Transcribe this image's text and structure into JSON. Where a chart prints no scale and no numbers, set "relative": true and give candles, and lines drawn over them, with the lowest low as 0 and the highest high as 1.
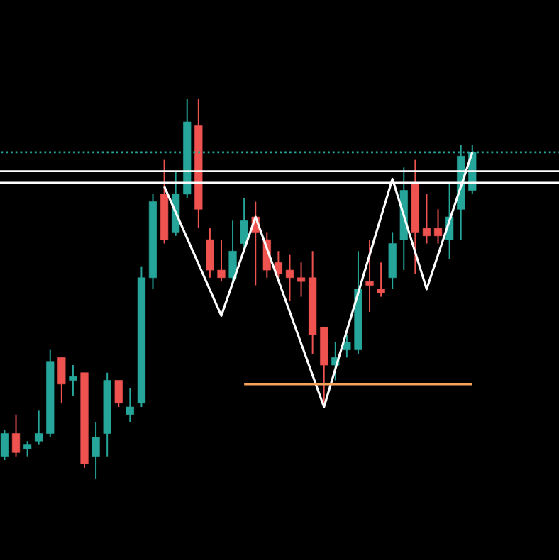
{
  "chart_data": {
    "type": "candlestick",
    "relative": true,
    "categories": [
      null,
      null,
      null,
      null,
      null,
      null,
      null,
      null,
      null,
      null,
      null,
      null,
      null,
      null,
      null,
      null,
      null,
      null,
      null,
      null,
      null,
      null,
      null,
      null,
      null,
      null,
      null,
      null,
      null,
      null,
      null,
      null,
      null,
      null,
      null,
      null,
      null,
      null,
      null,
      null,
      null,
      null
    ],
    "ohlc": [
      [
        0.06,
        0.13,
        0.05,
        0.12
      ],
      [
        0.12,
        0.17,
        0.06,
        0.07
      ],
      [
        0.08,
        0.1,
        0.06,
        0.09
      ],
      [
        0.1,
        0.18,
        0.09,
        0.12
      ],
      [
        0.12,
        0.34,
        0.11,
        0.31
      ],
      [
        0.32,
        0.32,
        0.2,
        0.25
      ],
      [
        0.26,
        0.3,
        0.22,
        0.27
      ],
      [
        0.28,
        0.28,
        0.03,
        0.04
      ],
      [
        0.06,
        0.15,
        0,
        0.11
      ],
      [
        0.12,
        0.28,
        0.06,
        0.26
      ],
      [
        0.26,
        0.26,
        0.19,
        0.2
      ],
      [
        0.17,
        0.24,
        0.15,
        0.19
      ],
      [
        0.2,
        0.56,
        0.19,
        0.53
      ],
      [
        0.53,
        0.75,
        0.5,
        0.73
      ],
      [
        0.75,
        0.84,
        0.62,
        0.63
      ],
      [
        0.65,
        0.81,
        0.64,
        0.75
      ],
      [
        0.75,
        1,
        0.74,
        0.94
      ],
      [
        0.93,
        1,
        0.66,
        0.71
      ],
      [
        0.63,
        0.66,
        0.53,
        0.55
      ],
      [
        0.55,
        0.63,
        0.52,
        0.53
      ],
      [
        0.53,
        0.68,
        0.52,
        0.6
      ],
      [
        0.62,
        0.74,
        0.6,
        0.68
      ],
      [
        0.69,
        0.73,
        0.51,
        0.65
      ],
      [
        0.63,
        0.65,
        0.53,
        0.55
      ],
      [
        0.57,
        0.6,
        0.53,
        0.54
      ],
      [
        0.55,
        0.59,
        0.47,
        0.53
      ],
      [
        0.53,
        0.57,
        0.48,
        0.52
      ],
      [
        0.53,
        0.6,
        0.33,
        0.38
      ],
      [
        0.4,
        0.4,
        0.19,
        0.3
      ],
      [
        0.3,
        0.36,
        0.26,
        0.32
      ],
      [
        0.34,
        0.38,
        0.32,
        0.36
      ],
      [
        0.34,
        0.6,
        0.33,
        0.5
      ],
      [
        0.52,
        0.63,
        0.44,
        0.51
      ],
      [
        0.5,
        0.57,
        0.48,
        0.49
      ],
      [
        0.53,
        0.65,
        0.5,
        0.62
      ],
      [
        0.63,
        0.82,
        0.55,
        0.76
      ],
      [
        0.78,
        0.84,
        0.54,
        0.65
      ],
      [
        0.66,
        0.75,
        0.62,
        0.64
      ],
      [
        0.66,
        0.71,
        0.62,
        0.64
      ],
      [
        0.63,
        0.78,
        0.58,
        0.69
      ],
      [
        0.71,
        0.88,
        0.63,
        0.85
      ],
      [
        0.76,
        0.88,
        0.75,
        0.86
      ]
    ],
    "colors": [
      "#26a69a",
      "#ef5350",
      "#26a69a",
      "#26a69a",
      "#26a69a",
      "#ef5350",
      "#26a69a",
      "#ef5350",
      "#26a69a",
      "#26a69a",
      "#ef5350",
      "#26a69a",
      "#26a69a",
      "#26a69a",
      "#ef5350",
      "#26a69a",
      "#26a69a",
      "#ef5350",
      "#ef5350",
      "#ef5350",
      "#26a69a",
      "#26a69a",
      "#ef5350",
      "#ef5350",
      "#ef5350",
      "#ef5350",
      "#ef5350",
      "#ef5350",
      "#ef5350",
      "#26a69a",
      "#26a69a",
      "#26a69a",
      "#ef5350",
      "#ef5350",
      "#26a69a",
      "#26a69a",
      "#ef5350",
      "#ef5350",
      "#ef5350",
      "#26a69a",
      "#26a69a",
      "#26a69a"
    ],
    "series": [
      {
        "type": "line",
        "values": [
          null,
          null,
          null,
          null,
          null,
          null,
          null,
          null,
          null,
          null,
          null,
          null,
          null,
          null,
          0.77,
          null,
          null,
          null,
          null,
          0.43,
          null,
          null,
          0.69,
          null,
          null,
          null,
          null,
          null,
          0.19,
          null,
          null,
          null,
          null,
          null,
          0.79,
          null,
          null,
          0.5,
          null,
          null,
          null,
          0.86
        ],
        "color": "#ffffff"
      },
      {
        "type": "line",
        "values": [
          null,
          null,
          null,
          null,
          null,
          null,
          null,
          null,
          null,
          null,
          null,
          null,
          null,
          null,
          null,
          null,
          null,
          null,
          null,
          null,
          null,
          0.25,
          0.25,
          0.25,
          0.25,
          0.25,
          0.25,
          0.25,
          0.25,
          0.25,
          0.25,
          0.25,
          0.25,
          0.25,
          0.25,
          0.25,
          0.25,
          0.25,
          0.25,
          0.25,
          0.25,
          0.25
        ],
        "color": "#f7a35c"
      }
    ],
    "ref_lines": [
      {
        "axis": "y",
        "value": 0.81,
        "color": "#ffffff"
      },
      {
        "axis": "y",
        "value": 0.78,
        "color": "#ffffff"
      },
      {
        "axis": "y",
        "value": 0.86,
        "color": "#26a69a",
        "line_style": "dotted"
      }
    ]
  }
}
